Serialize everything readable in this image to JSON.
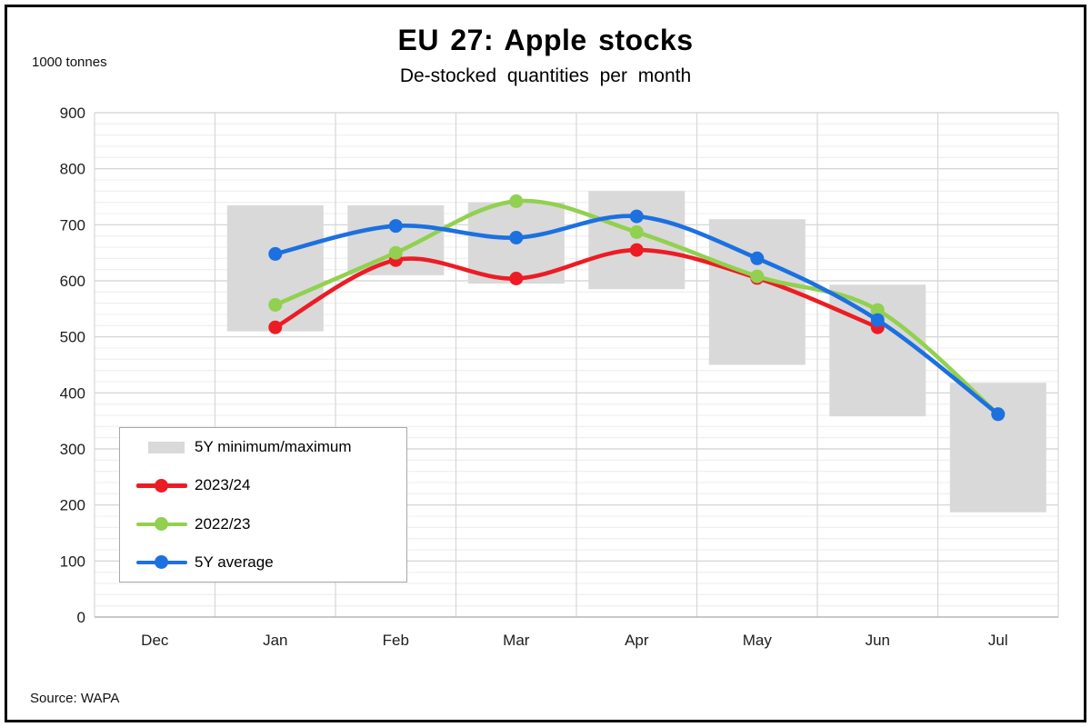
{
  "footer": {
    "source": "Source: WAPA"
  },
  "chart_data": {
    "type": "line",
    "title": "EU 27: Apple stocks",
    "subtitle": "De-stocked quantities per month",
    "ylabel": "1000 tonnes",
    "categories": [
      "Dec",
      "Jan",
      "Feb",
      "Mar",
      "Apr",
      "May",
      "Jun",
      "Jul"
    ],
    "ylim": [
      0,
      900
    ],
    "ytick_step": 100,
    "minor_grid_step": 20,
    "grid": true,
    "legend_position": "inside-left",
    "range_series": {
      "name": "5Y minimum/maximum",
      "color": "#d9d9d9",
      "min": [
        null,
        510,
        610,
        595,
        585,
        450,
        358,
        187
      ],
      "max": [
        null,
        735,
        735,
        740,
        760,
        710,
        593,
        418
      ]
    },
    "series": [
      {
        "name": "2023/24",
        "color": "#ed1c24",
        "values": [
          null,
          517,
          637,
          604,
          655,
          605,
          517,
          null
        ]
      },
      {
        "name": "2022/23",
        "color": "#92d050",
        "values": [
          null,
          557,
          650,
          742,
          687,
          608,
          548,
          362
        ]
      },
      {
        "name": "5Y average",
        "color": "#1c70e0",
        "values": [
          null,
          648,
          698,
          677,
          715,
          640,
          530,
          362
        ]
      }
    ]
  }
}
